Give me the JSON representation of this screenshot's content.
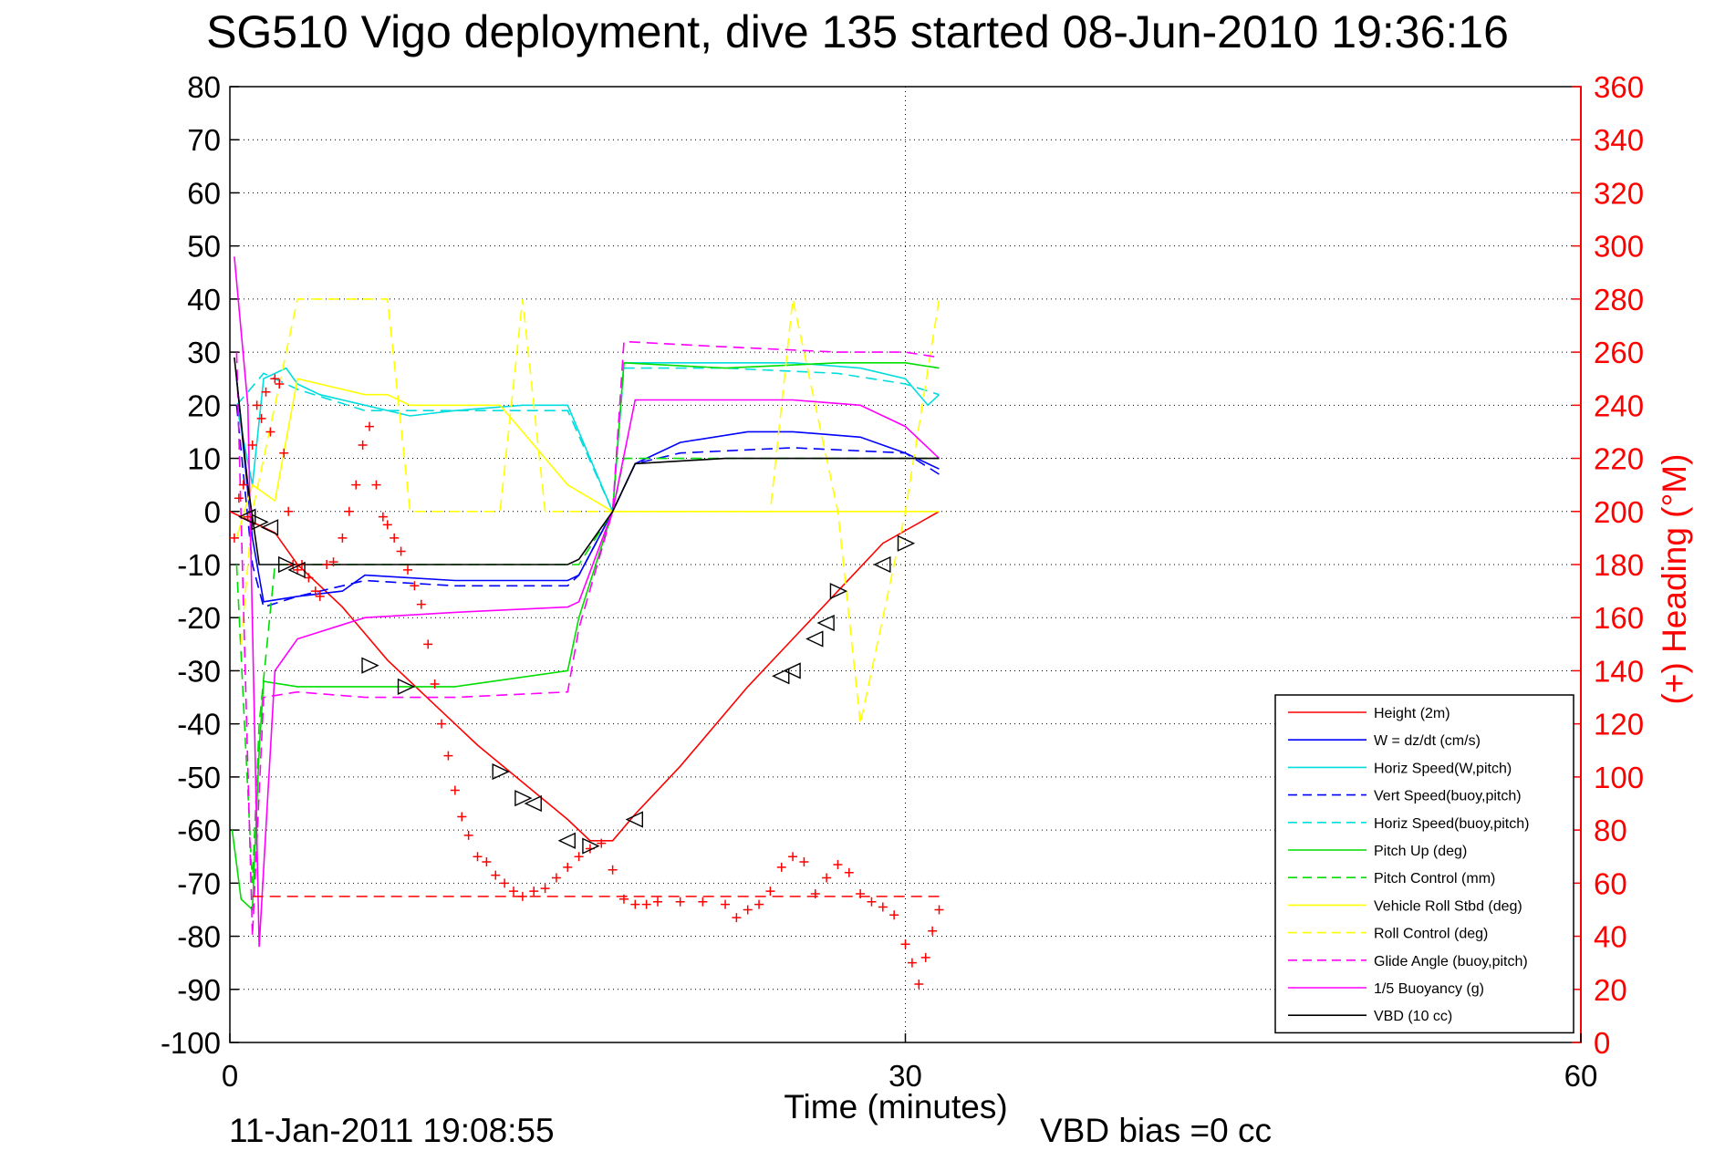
{
  "chart_data": {
    "type": "line",
    "title": "SG510 Vigo deployment, dive 135 started 08-Jun-2010 19:36:16",
    "xlabel": "Time (minutes)",
    "ylabel": "",
    "y2label": "(+) Heading (°M)",
    "xlim": [
      0,
      60
    ],
    "ylim": [
      -100,
      80
    ],
    "y2lim": [
      0,
      360
    ],
    "xticks": [
      "0",
      "30",
      "60"
    ],
    "yticks": [
      "80",
      "70",
      "60",
      "50",
      "40",
      "30",
      "20",
      "10",
      "0",
      "-10",
      "-20",
      "-30",
      "-40",
      "-50",
      "-60",
      "-70",
      "-80",
      "-90",
      "-100"
    ],
    "y2ticks": [
      "360",
      "340",
      "320",
      "300",
      "280",
      "260",
      "240",
      "220",
      "200",
      "180",
      "160",
      "140",
      "120",
      "100",
      "80",
      "60",
      "40",
      "20",
      "0"
    ],
    "grid": true,
    "legend_position": "bottom-right",
    "footer_date": "11-Jan-2011 19:08:55",
    "footer_bias": "VBD bias =0 cc",
    "series": [
      {
        "name": "Height (2m)",
        "color": "#ff0000",
        "style": "solid",
        "x": [
          0,
          0.5,
          1,
          2,
          3,
          5,
          7,
          9,
          11,
          13,
          15,
          16,
          17,
          18,
          20,
          23,
          25,
          27,
          29,
          31.5
        ],
        "y": [
          0,
          -1,
          -2,
          -4,
          -10,
          -18,
          -28,
          -36,
          -44,
          -51,
          -58,
          -62,
          -62,
          -57,
          -48,
          -33,
          -24,
          -15,
          -6,
          0
        ]
      },
      {
        "name": "W = dz/dt (cm/s)",
        "color": "#0000ff",
        "style": "solid",
        "x": [
          0.3,
          1,
          1.5,
          3,
          5,
          6,
          10,
          15,
          15.5,
          17,
          18,
          20,
          23,
          25,
          28,
          30,
          31.5
        ],
        "y": [
          25,
          -5,
          -17,
          -16,
          -15,
          -12,
          -13,
          -13,
          -12,
          0,
          9,
          13,
          15,
          15,
          14,
          11,
          8
        ]
      },
      {
        "name": "Horiz Speed(W,pitch)",
        "color": "#00dddd",
        "style": "solid",
        "x": [
          0.3,
          1,
          1.5,
          2.5,
          3,
          4,
          6,
          8,
          10,
          13,
          15,
          16,
          17,
          17.5,
          20,
          25,
          28,
          30,
          31,
          31.5
        ],
        "y": [
          20,
          5,
          25,
          27,
          24,
          22,
          20,
          18,
          19,
          20,
          20,
          10,
          0,
          28,
          28,
          28,
          27,
          25,
          20,
          22
        ]
      },
      {
        "name": "Vert Speed(buoy,pitch)",
        "color": "#0000ff",
        "style": "dashed",
        "x": [
          0.3,
          1,
          1.5,
          3,
          6,
          10,
          15,
          15.5,
          17,
          18,
          20,
          25,
          30,
          31.5
        ],
        "y": [
          20,
          -10,
          -18,
          -16,
          -13,
          -14,
          -14,
          -12,
          0,
          9,
          11,
          12,
          11,
          7
        ]
      },
      {
        "name": "Horiz Speed(buoy,pitch)",
        "color": "#00dddd",
        "style": "dashed",
        "x": [
          0.3,
          1.5,
          3,
          6,
          10,
          15,
          17,
          17.5,
          22,
          27,
          30,
          31.5
        ],
        "y": [
          20,
          26,
          23,
          19,
          19,
          19,
          0,
          27,
          27,
          26,
          24,
          22
        ]
      },
      {
        "name": "Pitch Up (deg)",
        "color": "#00dd00",
        "style": "solid",
        "x": [
          0.1,
          0.5,
          1,
          1.3,
          1.5,
          3,
          6,
          10,
          15,
          15.5,
          17,
          17.5,
          22,
          27,
          30,
          31.5
        ],
        "y": [
          -60,
          -73,
          -75,
          -45,
          -32,
          -33,
          -33,
          -33,
          -30,
          -20,
          0,
          28,
          27,
          28,
          28,
          27
        ]
      },
      {
        "name": "Pitch Control (mm)",
        "color": "#00dd00",
        "style": "dashed",
        "x": [
          0.3,
          1,
          1.3,
          2,
          15,
          15.5,
          17,
          17.5,
          22,
          30,
          31.5
        ],
        "y": [
          -10,
          -70,
          -40,
          -10,
          -10,
          -10,
          0,
          10,
          10,
          10,
          10
        ]
      },
      {
        "name": "Vehicle Roll Stbd (deg)",
        "color": "#ffff00",
        "style": "solid",
        "x": [
          0.3,
          1,
          2,
          3,
          6,
          7,
          8,
          12,
          13,
          15,
          17,
          18,
          25,
          26,
          27,
          28,
          30,
          31.5
        ],
        "y": [
          -5,
          5,
          2,
          25,
          22,
          22,
          20,
          20,
          15,
          5,
          0,
          0,
          0,
          0,
          0,
          0,
          0,
          0
        ]
      },
      {
        "name": "Roll Control (deg)",
        "color": "#ffff00",
        "style": "dashed",
        "x": [
          0.5,
          1,
          3,
          7,
          8,
          12,
          13,
          14,
          15,
          17,
          18,
          24,
          25,
          27,
          28,
          30,
          31.5
        ],
        "y": [
          -25,
          0,
          40,
          40,
          0,
          0,
          40,
          0,
          0,
          0,
          0,
          0,
          40,
          0,
          -40,
          0,
          40
        ]
      },
      {
        "name": "Glide Angle (buoy,pitch)",
        "color": "#ff00ff",
        "style": "dashed",
        "x": [
          0.3,
          1,
          1.5,
          3,
          6,
          10,
          15,
          15.5,
          17,
          17.5,
          22,
          27,
          30,
          31.5
        ],
        "y": [
          30,
          -80,
          -35,
          -34,
          -35,
          -35,
          -34,
          -22,
          0,
          32,
          31,
          30,
          30,
          29
        ]
      },
      {
        "name": "1/5 Buoyancy (g)",
        "color": "#ff00ff",
        "style": "solid",
        "x": [
          0.2,
          0.8,
          1.3,
          2,
          3,
          6,
          10,
          15,
          15.5,
          17,
          18,
          22,
          25,
          28,
          30,
          31,
          31.5
        ],
        "y": [
          48,
          20,
          -82,
          -30,
          -24,
          -20,
          -19,
          -18,
          -17,
          0,
          21,
          21,
          21,
          20,
          16,
          12,
          10
        ]
      },
      {
        "name": "VBD (10 cc)",
        "color": "#000000",
        "style": "solid",
        "x": [
          0.2,
          0.8,
          1.3,
          2,
          3,
          10,
          15,
          15.5,
          17,
          18,
          22,
          30,
          31.5
        ],
        "y": [
          29,
          5,
          -10,
          -10,
          -10,
          -10,
          -10,
          -9,
          0,
          9,
          10,
          10,
          10
        ]
      }
    ],
    "heading_points": {
      "name": "Heading (°M)",
      "color": "#ff0000",
      "marker": "plus",
      "x": [
        0.2,
        0.4,
        0.6,
        0.8,
        1.0,
        1.2,
        1.4,
        1.6,
        1.8,
        2.0,
        2.2,
        2.4,
        2.6,
        2.8,
        3.0,
        3.2,
        3.5,
        3.8,
        4.0,
        4.3,
        4.6,
        5.0,
        5.3,
        5.6,
        5.9,
        6.2,
        6.5,
        6.8,
        7.0,
        7.3,
        7.6,
        7.9,
        8.2,
        8.5,
        8.8,
        9.1,
        9.4,
        9.7,
        10.0,
        10.3,
        10.6,
        11.0,
        11.4,
        11.8,
        12.2,
        12.6,
        13.0,
        13.5,
        14.0,
        14.5,
        15.0,
        15.5,
        16.0,
        16.5,
        17.0,
        17.5,
        18.0,
        18.5,
        19.0,
        20.0,
        21.0,
        22.0,
        22.5,
        23.0,
        23.5,
        24.0,
        24.5,
        25.0,
        25.5,
        26.0,
        26.5,
        27.0,
        27.5,
        28.0,
        28.5,
        29.0,
        29.5,
        30.0,
        30.3,
        30.6,
        30.9,
        31.2,
        31.5
      ],
      "y": [
        190,
        205,
        210,
        198,
        225,
        240,
        235,
        245,
        230,
        250,
        248,
        222,
        200,
        180,
        178,
        180,
        175,
        170,
        168,
        180,
        181,
        190,
        200,
        210,
        225,
        232,
        210,
        198,
        195,
        190,
        185,
        178,
        172,
        165,
        150,
        135,
        120,
        108,
        95,
        85,
        78,
        70,
        68,
        63,
        60,
        57,
        55,
        57,
        58,
        62,
        66,
        70,
        73,
        75,
        65,
        54,
        52,
        52,
        53,
        53,
        53,
        52,
        47,
        50,
        52,
        57,
        66,
        70,
        68,
        56,
        62,
        67,
        64,
        56,
        53,
        51,
        48,
        37,
        30,
        22,
        32,
        42,
        50
      ]
    },
    "target_heading": {
      "name": "",
      "color": "#ff0000",
      "style": "dashed",
      "x": [
        1,
        31.5
      ],
      "y": [
        55,
        55
      ]
    },
    "triangle_markers": {
      "down": [
        [
          1.3,
          -2
        ],
        [
          2.5,
          -10
        ],
        [
          6.2,
          -29
        ],
        [
          7.8,
          -33
        ],
        [
          12,
          -49
        ],
        [
          13,
          -54
        ],
        [
          16,
          -63
        ],
        [
          27,
          -15
        ],
        [
          30,
          -6
        ]
      ],
      "up": [
        [
          0.8,
          -1
        ],
        [
          1.8,
          -3
        ],
        [
          3,
          -11
        ],
        [
          13.5,
          -55
        ],
        [
          15,
          -62
        ],
        [
          18,
          -58
        ],
        [
          24.5,
          -31
        ],
        [
          25,
          -30
        ],
        [
          26,
          -24
        ],
        [
          26.5,
          -21
        ],
        [
          29,
          -10
        ]
      ]
    }
  }
}
